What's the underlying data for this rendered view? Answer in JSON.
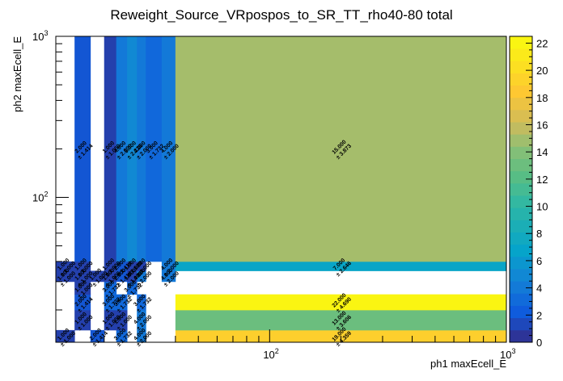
{
  "chart_data": {
    "type": "heatmap",
    "title": "Reweight_Source_VRpospos_to_SR_TT_rho40-80 total",
    "xlabel": "ph1 maxEcell_E",
    "ylabel": "ph2 maxEcell_E",
    "x_scale": "log",
    "y_scale": "log",
    "xlim": [
      12.5,
      1000
    ],
    "ylim": [
      12.6,
      1000
    ],
    "zlim": [
      0,
      22.5
    ],
    "x_ticks": [
      {
        "value": 100,
        "label": "10",
        "exp": "2"
      },
      {
        "value": 1000,
        "label": "10",
        "exp": "3"
      }
    ],
    "y_ticks": [
      {
        "value": 100,
        "label": "10",
        "exp": "2"
      },
      {
        "value": 1000,
        "label": "10",
        "exp": "3"
      }
    ],
    "z_ticks": [
      0,
      2,
      4,
      6,
      8,
      10,
      12,
      14,
      16,
      18,
      20,
      22
    ],
    "x_edges": [
      12.5,
      15,
      17.5,
      20,
      22.5,
      25,
      27.5,
      30,
      35,
      40,
      1000
    ],
    "y_edges": [
      12.6,
      15,
      20,
      25,
      30,
      35,
      40,
      1000
    ],
    "cells": [
      {
        "ix": 0,
        "iy": 0,
        "value": 1.0,
        "error": "1.000",
        "label": "1.000"
      },
      {
        "ix": 2,
        "iy": 0,
        "value": 2.0,
        "error": "1.414",
        "label": "2.000"
      },
      {
        "ix": 4,
        "iy": 0,
        "value": 3.0,
        "error": "1.732",
        "label": "3.000"
      },
      {
        "ix": 6,
        "iy": 0,
        "value": 4.0,
        "error": "2.000",
        "label": "4.000"
      },
      {
        "ix": 9,
        "iy": 0,
        "value": 19.0,
        "error": "4.359",
        "label": "19.000"
      },
      {
        "ix": 1,
        "iy": 1,
        "value": 1.0,
        "error": "1.000",
        "label": "1.000"
      },
      {
        "ix": 3,
        "iy": 1,
        "value": 1.0,
        "error": "1.000",
        "label": "1.000"
      },
      {
        "ix": 4,
        "iy": 1,
        "value": 1.0,
        "error": "1.000",
        "label": "1.000"
      },
      {
        "ix": 6,
        "iy": 1,
        "value": 4.0,
        "error": "2.000",
        "label": "4.000"
      },
      {
        "ix": 9,
        "iy": 1,
        "value": 13.0,
        "error": "3.606",
        "label": "13.000"
      },
      {
        "ix": 1,
        "iy": 2,
        "value": 2.0,
        "error": "1.414",
        "label": "2.000"
      },
      {
        "ix": 3,
        "iy": 2,
        "value": 3.0,
        "error": "1.732",
        "label": "3.000"
      },
      {
        "ix": 4,
        "iy": 2,
        "value": 3.0,
        "error": "1.732",
        "label": "3.000"
      },
      {
        "ix": 6,
        "iy": 2,
        "value": 3.0,
        "error": "1.732",
        "label": "3.000"
      },
      {
        "ix": 9,
        "iy": 2,
        "value": 22.0,
        "error": "4.690",
        "label": "22.000"
      },
      {
        "ix": 1,
        "iy": 3,
        "value": 1.0,
        "error": "1.000",
        "label": "1.000"
      },
      {
        "ix": 3,
        "iy": 3,
        "value": 3.0,
        "error": "1.732",
        "label": "3.000"
      },
      {
        "ix": 5,
        "iy": 3,
        "value": 3.0,
        "error": "1.732",
        "label": "3.000"
      },
      {
        "ix": 0,
        "iy": 4,
        "value": 1.0,
        "error": "1.000",
        "label": "1.000"
      },
      {
        "ix": 1,
        "iy": 4,
        "value": 1.0,
        "error": "1.000",
        "label": "1.000"
      },
      {
        "ix": 2,
        "iy": 4,
        "value": 1.0,
        "error": "1.000",
        "label": "1.000"
      },
      {
        "ix": 3,
        "iy": 4,
        "value": 1.0,
        "error": "1.000",
        "label": "1.000"
      },
      {
        "ix": 4,
        "iy": 4,
        "value": 2.0,
        "error": "1.414",
        "label": "2.000"
      },
      {
        "ix": 5,
        "iy": 4,
        "value": 1.0,
        "error": "1.000",
        "label": "1.000"
      },
      {
        "ix": 6,
        "iy": 4,
        "value": 4.0,
        "error": "2.000",
        "label": "4.000"
      },
      {
        "ix": 8,
        "iy": 4,
        "value": 4.0,
        "error": "2.000",
        "label": "4.000"
      },
      {
        "ix": 0,
        "iy": 5,
        "value": 1.0,
        "error": "1.000",
        "label": "1.000"
      },
      {
        "ix": 1,
        "iy": 5,
        "value": 1.0,
        "error": "1.000",
        "label": "1.000"
      },
      {
        "ix": 3,
        "iy": 5,
        "value": 1.0,
        "error": "1.000",
        "label": "1.000"
      },
      {
        "ix": 4,
        "iy": 5,
        "value": 2.0,
        "error": "1.414",
        "label": "2.000"
      },
      {
        "ix": 5,
        "iy": 5,
        "value": 1.0,
        "error": "1.000",
        "label": "1.000"
      },
      {
        "ix": 6,
        "iy": 5,
        "value": 1.0,
        "error": "1.000",
        "label": "1.000"
      },
      {
        "ix": 8,
        "iy": 5,
        "value": 4.0,
        "error": "2.000",
        "label": "4.000"
      },
      {
        "ix": 9,
        "iy": 5,
        "value": 7.0,
        "error": "2.646",
        "label": "7.000"
      },
      {
        "ix": 1,
        "iy": 6,
        "value": 2.0,
        "error": "1.414",
        "label": "2.000"
      },
      {
        "ix": 3,
        "iy": 6,
        "value": 1.0,
        "error": "1.000",
        "label": "1.000"
      },
      {
        "ix": 4,
        "iy": 6,
        "value": 4.0,
        "error": "2.000",
        "label": "4.000"
      },
      {
        "ix": 5,
        "iy": 6,
        "value": 5.0,
        "error": "2.236",
        "label": "5.000"
      },
      {
        "ix": 6,
        "iy": 6,
        "value": 4.0,
        "error": "2.000",
        "label": "4.000"
      },
      {
        "ix": 7,
        "iy": 6,
        "value": 3.0,
        "error": "1.732",
        "label": "3.000"
      },
      {
        "ix": 8,
        "iy": 6,
        "value": 4.0,
        "error": "2.000",
        "label": "4.000"
      },
      {
        "ix": 9,
        "iy": 6,
        "value": 15.0,
        "error": "3.873",
        "label": "15.000"
      }
    ]
  }
}
